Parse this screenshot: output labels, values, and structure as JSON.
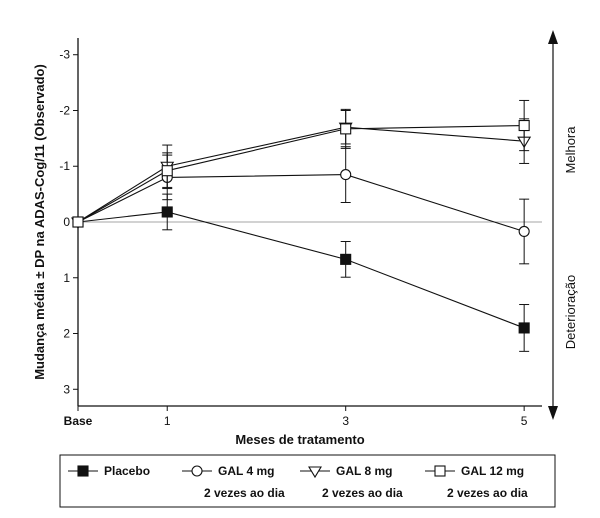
{
  "chart_data": {
    "type": "line",
    "xlabel": "Meses de tratamento",
    "ylabel": "Mudança média ± DP na ADAS-Cog/11 (Observado)",
    "x_ticks": [
      {
        "value": 0,
        "label": "Base"
      },
      {
        "value": 1,
        "label": "1"
      },
      {
        "value": 3,
        "label": "3"
      },
      {
        "value": 5,
        "label": "5"
      }
    ],
    "y_ticks": [
      {
        "value": -3,
        "label": "-3"
      },
      {
        "value": -2,
        "label": "-2"
      },
      {
        "value": -1,
        "label": "-1"
      },
      {
        "value": 0,
        "label": "0"
      },
      {
        "value": 1,
        "label": "1"
      },
      {
        "value": 2,
        "label": "2"
      },
      {
        "value": 3,
        "label": "3"
      }
    ],
    "xlim": [
      0,
      5.2
    ],
    "ylim": [
      -3.3,
      3.3
    ],
    "y_inverted": true,
    "reference_line": 0,
    "side_labels": {
      "top": "Melhora",
      "bottom": "Deterioração"
    },
    "series": [
      {
        "name": "Placebo",
        "marker": "filled-square",
        "x": [
          0,
          1,
          3,
          5
        ],
        "y": [
          0,
          -0.18,
          0.67,
          1.9
        ],
        "err": [
          0,
          0.32,
          0.32,
          0.42
        ]
      },
      {
        "name": "GAL 4 mg 2 vezes ao dia",
        "name_lines": [
          "GAL 4 mg",
          "2 vezes ao dia"
        ],
        "marker": "circle",
        "x": [
          0,
          1,
          3,
          5
        ],
        "y": [
          0,
          -0.8,
          -0.85,
          0.17
        ],
        "err": [
          0,
          0.4,
          0.5,
          0.58
        ]
      },
      {
        "name": "GAL 8 mg 2 vezes ao dia",
        "name_lines": [
          "GAL 8 mg",
          "2 vezes ao dia"
        ],
        "marker": "triangle-down",
        "x": [
          0,
          1,
          3,
          5
        ],
        "y": [
          0,
          -1.0,
          -1.7,
          -1.45
        ],
        "err": [
          0,
          0.38,
          0.3,
          0.4
        ]
      },
      {
        "name": "GAL 12 mg 2 vezes ao dia",
        "name_lines": [
          "GAL 12 mg",
          "2 vezes ao dia"
        ],
        "marker": "open-square",
        "x": [
          0,
          1,
          3,
          5
        ],
        "y": [
          0,
          -0.92,
          -1.67,
          -1.73
        ],
        "err": [
          0,
          0.32,
          0.35,
          0.45
        ]
      }
    ]
  }
}
